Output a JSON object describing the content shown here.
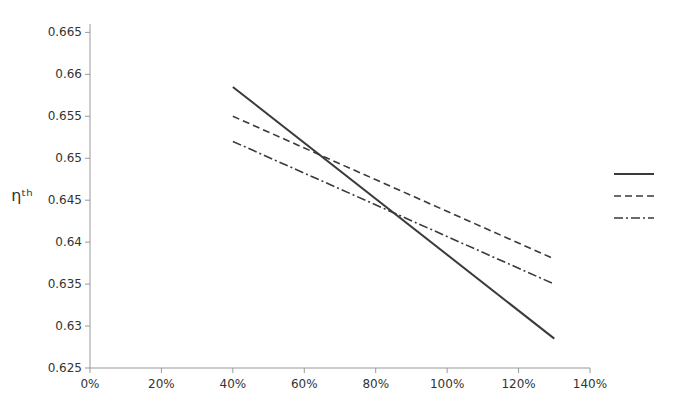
{
  "chart_data": {
    "type": "line",
    "y_label": "ηᵗʰ",
    "x": [
      0.4,
      1.3
    ],
    "series": [
      {
        "color": "#3a3a3a",
        "line_style": "solid",
        "values": [
          0.6585,
          0.6285
        ]
      },
      {
        "color": "#3a3a3a",
        "line_style": "dashed",
        "values": [
          0.655,
          0.638
        ]
      },
      {
        "color": "#3a3a3a",
        "line_style": "dashdot",
        "values": [
          0.652,
          0.635
        ]
      }
    ],
    "xlim": [
      0.0,
      1.4
    ],
    "ylim": [
      0.625,
      0.666
    ],
    "xticks": [
      {
        "value": 0.0,
        "label": "0%"
      },
      {
        "value": 0.2,
        "label": "20%"
      },
      {
        "value": 0.4,
        "label": "40%"
      },
      {
        "value": 0.6,
        "label": "60%"
      },
      {
        "value": 0.8,
        "label": "80%"
      },
      {
        "value": 1.0,
        "label": "100%"
      },
      {
        "value": 1.2,
        "label": "120%"
      },
      {
        "value": 1.4,
        "label": "140%"
      }
    ],
    "yticks": [
      0.625,
      0.63,
      0.635,
      0.64,
      0.645,
      0.65,
      0.655,
      0.66,
      0.665
    ],
    "grid": false,
    "legend": "right"
  }
}
